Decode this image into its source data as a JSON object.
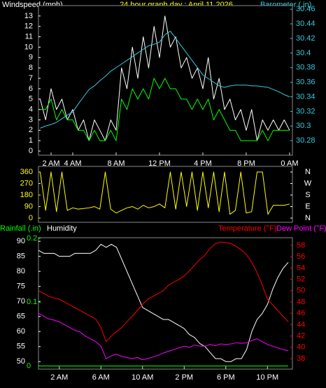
{
  "chart_data": [
    {
      "type": "line",
      "title": "24 hour graph day : April 11 2026",
      "ylabel": "Windspeed (mph)",
      "y2label": "Barometer (.in)",
      "x": [
        1,
        1.5,
        2,
        2.5,
        3,
        3.5,
        4,
        4.5,
        5,
        5.5,
        6,
        6.5,
        7,
        7.5,
        8,
        8.5,
        9,
        9.5,
        10,
        10.5,
        11,
        11.5,
        12,
        12.5,
        13,
        13.5,
        14,
        14.5,
        15,
        15.5,
        16,
        16.5,
        17,
        17.5,
        18,
        18.5,
        19,
        19.5,
        20,
        20.5,
        21,
        21.5,
        22,
        22.5,
        23,
        23.5,
        24
      ],
      "xlim": [
        0.84,
        24.26
      ],
      "xticks": [
        {
          "value": 2,
          "label": "2 AM"
        },
        {
          "value": 4,
          "label": "4 AM"
        },
        {
          "value": 8,
          "label": "8 AM"
        },
        {
          "value": 12,
          "label": "12 PM"
        },
        {
          "value": 16,
          "label": "4 PM"
        },
        {
          "value": 20,
          "label": "8 PM"
        },
        {
          "value": 24,
          "label": "0 AM"
        }
      ],
      "ylim": [
        -0.4,
        14
      ],
      "yticks": [
        0,
        1,
        2,
        3,
        4,
        5,
        6,
        7,
        8,
        9,
        10,
        11,
        12,
        13
      ],
      "y2lim": [
        30.26,
        30.465
      ],
      "y2ticks": [
        30.28,
        30.3,
        30.32,
        30.34,
        30.36,
        30.38,
        30.4,
        30.42,
        30.44,
        30.46
      ],
      "series": [
        {
          "color": "#ffffff",
          "values": [
            5,
            3,
            6,
            4,
            5,
            3,
            4,
            2,
            3,
            1,
            3,
            2,
            1,
            3,
            2,
            8,
            6,
            10,
            7,
            11,
            8,
            12,
            9,
            13,
            10,
            11,
            8,
            9,
            7,
            8,
            6,
            9,
            5,
            7,
            4,
            5,
            3,
            4,
            2,
            4,
            1,
            3,
            2,
            3,
            2,
            3,
            2
          ]
        },
        {
          "color": "#00ff00",
          "values": [
            4,
            4,
            5,
            3,
            4,
            3,
            3,
            2,
            2,
            1,
            2,
            1,
            1,
            2,
            1,
            5,
            4,
            6,
            5,
            6,
            5,
            7,
            6,
            7,
            6,
            6,
            5,
            5,
            4,
            5,
            4,
            5,
            3,
            4,
            3,
            2,
            2,
            1,
            1,
            1,
            1,
            2,
            1,
            2,
            2,
            2,
            2
          ]
        },
        {
          "color": "#33ccdd",
          "axis": "y2",
          "values": [
            30.297,
            30.3,
            30.302,
            30.305,
            30.31,
            30.315,
            30.319,
            30.33,
            30.34,
            30.35,
            30.355,
            30.362,
            30.368,
            30.375,
            30.38,
            30.385,
            30.39,
            30.395,
            30.4,
            30.405,
            30.41,
            30.412,
            30.415,
            30.425,
            30.43,
            30.42,
            30.41,
            30.4,
            30.39,
            30.38,
            30.37,
            30.365,
            30.36,
            30.355,
            30.353,
            30.355,
            30.356,
            30.356,
            30.356,
            30.355,
            30.355,
            30.354,
            30.353,
            30.35,
            30.347,
            30.343,
            30.34
          ]
        }
      ]
    },
    {
      "type": "line",
      "x": [
        1,
        1.5,
        2,
        2.5,
        3,
        3.5,
        4,
        4.5,
        5,
        5.5,
        6,
        6.5,
        7,
        7.5,
        8,
        8.5,
        9,
        9.5,
        10,
        10.5,
        11,
        11.5,
        12,
        12.5,
        13,
        13.5,
        14,
        14.5,
        15,
        15.5,
        16,
        16.5,
        17,
        17.5,
        18,
        18.5,
        19,
        19.5,
        20,
        20.5,
        21,
        21.5,
        22,
        22.5,
        23,
        23.5,
        24
      ],
      "xlim": [
        0.84,
        24.26
      ],
      "ylim": [
        -33,
        404
      ],
      "yticks": [
        0,
        90,
        180,
        270,
        360
      ],
      "y2lim": [
        -33,
        404
      ],
      "y2ticks": [
        {
          "value": 360,
          "label": "N"
        },
        {
          "value": 270,
          "label": "W"
        },
        {
          "value": 180,
          "label": "S"
        },
        {
          "value": 90,
          "label": "E"
        },
        {
          "value": 0,
          "label": "N"
        }
      ],
      "series": [
        {
          "color": "#ffff00",
          "values": [
            360,
            60,
            360,
            50,
            360,
            60,
            80,
            70,
            75,
            80,
            90,
            70,
            360,
            70,
            40,
            60,
            80,
            90,
            70,
            100,
            80,
            90,
            110,
            80,
            360,
            70,
            360,
            90,
            360,
            60,
            360,
            80,
            360,
            50,
            360,
            30,
            60,
            360,
            40,
            50,
            360,
            360,
            30,
            100,
            100,
            100,
            110
          ]
        }
      ]
    },
    {
      "type": "line",
      "x": [
        0,
        0.5,
        1,
        1.5,
        2,
        2.5,
        3,
        3.5,
        4,
        4.5,
        5,
        5.5,
        6,
        6.5,
        7,
        7.5,
        8,
        8.5,
        9,
        9.5,
        10,
        10.5,
        11,
        11.5,
        12,
        12.5,
        13,
        13.5,
        14,
        14.5,
        15,
        15.5,
        16,
        16.5,
        17,
        17.5,
        18,
        18.5,
        19,
        19.5,
        20,
        20.5,
        21,
        21.5,
        22,
        22.5,
        23,
        23.5,
        24
      ],
      "xlim": [
        0,
        24.4
      ],
      "xticks": [
        {
          "value": 2,
          "label": "2 AM"
        },
        {
          "value": 6,
          "label": "6 AM"
        },
        {
          "value": 10,
          "label": "10 AM"
        },
        {
          "value": 14,
          "label": "2 PM"
        },
        {
          "value": 18,
          "label": "6 PM"
        },
        {
          "value": 22,
          "label": "10 PM"
        }
      ],
      "ylim": [
        47.5,
        91.2
      ],
      "yticks": [
        50,
        55,
        60,
        65,
        70,
        75,
        80,
        85,
        90
      ],
      "y2lim": [
        36.15,
        59.35
      ],
      "y2ticks": [
        38,
        40,
        42,
        44,
        46,
        48,
        50,
        52,
        54,
        56,
        58
      ],
      "y3lim": [
        -0.005,
        0.201
      ],
      "y3ticks": [
        0,
        0.1,
        0.2
      ],
      "series": [
        {
          "name": "Rainfall (.in)",
          "color": "#00ff00",
          "axis": "y3",
          "values": [
            0,
            0,
            0,
            0,
            0,
            0,
            0,
            0,
            0,
            0,
            0,
            0,
            0,
            0,
            0,
            0,
            0,
            0,
            0,
            0,
            0,
            0,
            0,
            0,
            0,
            0,
            0,
            0,
            0,
            0,
            0,
            0,
            0,
            0,
            0,
            0,
            0,
            0,
            0,
            0,
            0,
            0,
            0,
            0,
            0,
            0,
            0,
            0,
            0
          ]
        },
        {
          "name": "Humidity",
          "color": "#ffffff",
          "values": [
            87,
            86,
            86,
            86,
            85,
            85,
            85,
            86,
            86,
            86,
            86,
            87,
            89,
            88,
            89,
            88,
            84,
            80,
            76,
            72,
            68,
            67,
            66,
            65,
            64,
            64,
            63,
            62,
            61,
            59,
            58,
            56,
            55,
            53,
            51,
            51,
            50,
            50,
            51,
            51,
            54,
            60,
            64,
            66,
            69,
            74,
            78,
            81,
            83
          ]
        },
        {
          "name": "Temperature (°F)",
          "color": "#ff0000",
          "axis": "y2",
          "values": [
            50,
            49.5,
            49,
            48.7,
            48.5,
            48,
            47.5,
            47,
            46.5,
            46,
            45.5,
            45,
            43.5,
            41,
            42,
            42.8,
            43.5,
            44.5,
            45.5,
            46.5,
            47.6,
            48.5,
            49,
            49.5,
            50,
            51,
            51.5,
            52,
            52.6,
            53.5,
            54.5,
            55.5,
            56.3,
            57.5,
            58.3,
            58.6,
            58.5,
            58.3,
            57.8,
            57.2,
            56.3,
            55,
            53.2,
            51,
            48.5,
            47.5,
            46.5,
            45.5,
            44.5
          ]
        },
        {
          "name": "Dew Point (°F)",
          "color": "#ff00ff",
          "axis": "y2",
          "values": [
            46,
            45.5,
            45,
            44.8,
            44.5,
            44,
            43.5,
            43,
            42.7,
            42,
            41.5,
            41,
            40.2,
            38,
            38.5,
            38.8,
            38.4,
            38.2,
            38,
            38.2,
            37.8,
            38,
            38.3,
            38.6,
            39,
            39.3,
            39.6,
            39.9,
            40.2,
            40,
            40.4,
            40.2,
            40.2,
            40.5,
            40.3,
            40.6,
            40.5,
            40.6,
            40.8,
            40.7,
            40.8,
            41.2,
            41.5,
            41,
            40.5,
            40.2,
            39.9,
            39.6,
            39.4
          ]
        }
      ]
    }
  ]
}
